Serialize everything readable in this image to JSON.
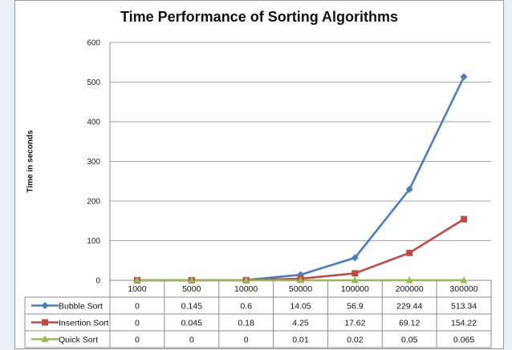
{
  "chart_data": {
    "type": "line",
    "title": "Time Performance of Sorting Algorithms",
    "xlabel": "",
    "ylabel": "Time in seconds",
    "ylim": [
      0,
      600
    ],
    "yticks": [
      "0",
      "100",
      "200",
      "300",
      "400",
      "500",
      "600"
    ],
    "grid": "horizontal",
    "legend": "data-table",
    "categories": [
      "1000",
      "5000",
      "10000",
      "50000",
      "100000",
      "200000",
      "300000"
    ],
    "series": [
      {
        "name": "Bubble Sort",
        "color": "#4a7ebb",
        "marker": "diamond",
        "values": [
          0,
          0.145,
          0.6,
          14.05,
          56.9,
          229.44,
          513.34
        ],
        "labels": [
          "0",
          "0.145",
          "0.6",
          "14.05",
          "56.9",
          "229.44",
          "513.34"
        ]
      },
      {
        "name": "Insertion Sort",
        "color": "#be4b48",
        "marker": "square",
        "values": [
          0,
          0.045,
          0.18,
          4.25,
          17.62,
          69.12,
          154.22
        ],
        "labels": [
          "0",
          "0.045",
          "0.18",
          "4.25",
          "17.62",
          "69.12",
          "154.22"
        ]
      },
      {
        "name": "Quick Sort",
        "color": "#98b954",
        "marker": "triangle",
        "values": [
          0,
          0,
          0,
          0.01,
          0.02,
          0.05,
          0.065
        ],
        "labels": [
          "0",
          "0",
          "0",
          "0.01",
          "0.02",
          "0.05",
          "0.065"
        ]
      }
    ]
  }
}
